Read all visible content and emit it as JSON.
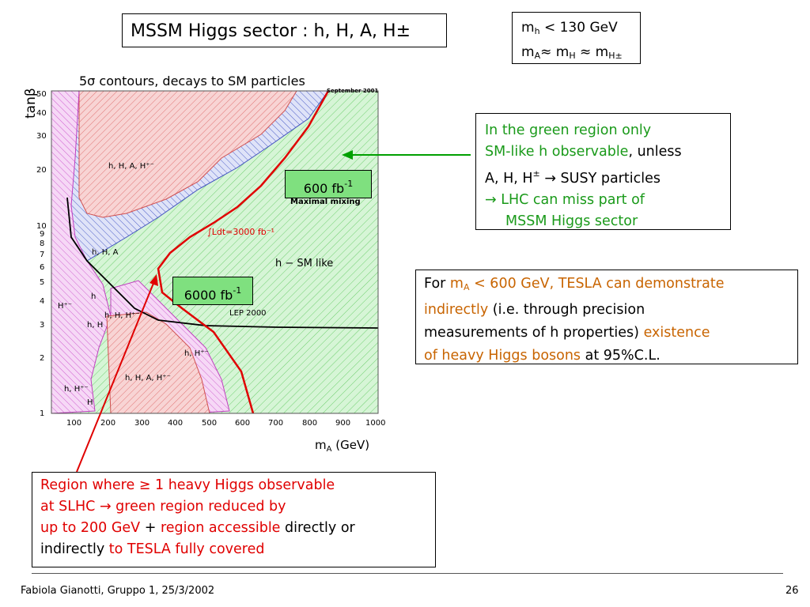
{
  "slide": {
    "title": "MSSM Higgs sector : h, H, A, H±",
    "conditions": {
      "line1_a": "m",
      "line1_sub": "h",
      "line1_b": " < 130 GeV",
      "line2_a": "m",
      "line2_sub1": "A",
      "line2_b": "≈ m",
      "line2_sub2": "H",
      "line2_c": " ≈ m",
      "line2_sub3": "H±"
    },
    "plot": {
      "title": "5σ contours, decays to SM particles",
      "watermark": "September 2001",
      "ylabel": "tanβ",
      "xlabel": "m",
      "xlabel_sub": "A",
      "xlabel_unit": " (GeV)",
      "x_ticks": [
        "100",
        "200",
        "300",
        "400",
        "500",
        "600",
        "700",
        "800",
        "900",
        "1000"
      ],
      "y_ticks": [
        "1",
        "2",
        "3",
        "4",
        "5",
        "6",
        "7",
        "8",
        "9",
        "10",
        "20",
        "30",
        "40",
        "50"
      ],
      "region_labels": {
        "hHAHpm_top": "h, H, A, H⁺⁻",
        "hHA": "h, H, A",
        "hSM": "h − SM like",
        "maximal_mixing": "Maximal mixing",
        "integral": "∫Ldt=3000 fb⁻¹",
        "lep": "LEP 2000",
        "hHHpm": "h, H, H⁺⁻",
        "Hpm_left": "H⁺⁻",
        "h_small": "h",
        "hH": "h, H",
        "hHpm_right": "h, H⁺⁻",
        "hHAHpm_bottom": "h, H, A, H⁺⁻",
        "hHpm_bottom": "h, H⁺⁻",
        "H_bottom": "H"
      },
      "badge_600": {
        "value": "600 fb",
        "exp": "-1"
      },
      "badge_6000": {
        "value": "6000 fb",
        "exp": "-1"
      }
    },
    "green_note": {
      "l1": "In the green region only",
      "l2a": "SM-like h observable",
      "l2b": ", unless",
      "l3a": "A, H, H",
      "l3sup": "±",
      "l3b": " → SUSY particles",
      "l4": "→ LHC can miss part of",
      "l5": "MSSM Higgs sector"
    },
    "tesla_note": {
      "a": "For ",
      "b": "m",
      "b_sub": "A",
      "c": " < 600 GeV, TESLA can demonstrate",
      "d": "indirectly",
      "e": " (i.e. through precision",
      "f": "measurements of h properties) ",
      "g": "existence",
      "h": "of heavy Higgs bosons",
      "i": " at 95%C.L."
    },
    "slhc_note": {
      "l1": "Region where ≥ 1 heavy Higgs observable",
      "l2a": "at SLHC  ",
      "l2b": "→ green region reduced by",
      "l3a": "up to 200 GeV",
      "l3b": "  + ",
      "l3c": "region accessible",
      "l3d": " directly or",
      "l4a": "indirectly ",
      "l4b": "to TESLA fully covered"
    },
    "footer": {
      "left": "Fabiola Gianotti,  Gruppo 1, 25/3/2002",
      "right": "26"
    },
    "colors": {
      "green_region": "#c8f0c8",
      "red_region": "#f4b0b0",
      "blue_region": "#c0c8f0",
      "magenta_region": "#f0b0f0",
      "accent_red": "#e00000",
      "arrow_green": "#00a000"
    }
  }
}
